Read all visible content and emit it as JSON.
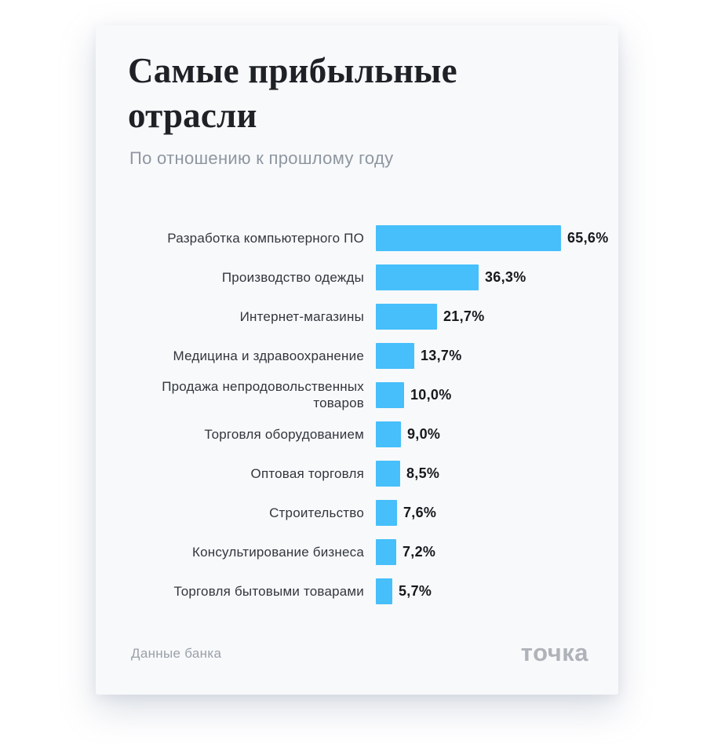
{
  "card": {
    "title": "Самые прибыльные отрасли",
    "subtitle": "По отношению к прошлому году",
    "source": "Данные банка",
    "logo": "точка",
    "background": "#f8f9fb",
    "accent_color": "#46bffb"
  },
  "chart_data": {
    "type": "bar",
    "orientation": "horizontal",
    "title": "Самые прибыльные отрасли",
    "subtitle": "По отношению к прошлому году",
    "categories": [
      "Разработка компьютерного ПО",
      "Производство одежды",
      "Интернет-магазины",
      "Медицина и здравоохранение",
      "Продажа непродовольственных товаров",
      "Торговля оборудованием",
      "Оптовая торговля",
      "Строительство",
      "Консультирование бизнеса",
      "Торговля бытовыми товарами"
    ],
    "values": [
      65.6,
      36.3,
      21.7,
      13.7,
      10.0,
      9.0,
      8.5,
      7.6,
      7.2,
      5.7
    ],
    "value_labels": [
      "65,6%",
      "36,3%",
      "21,7%",
      "13,7%",
      "10,0%",
      "9,0%",
      "8,5%",
      "7,6%",
      "7,2%",
      "5,7%"
    ],
    "xlim": [
      0,
      65.6
    ],
    "bar_color": "#46bffb",
    "grid": false,
    "legend": false,
    "source": "Данные банка"
  }
}
